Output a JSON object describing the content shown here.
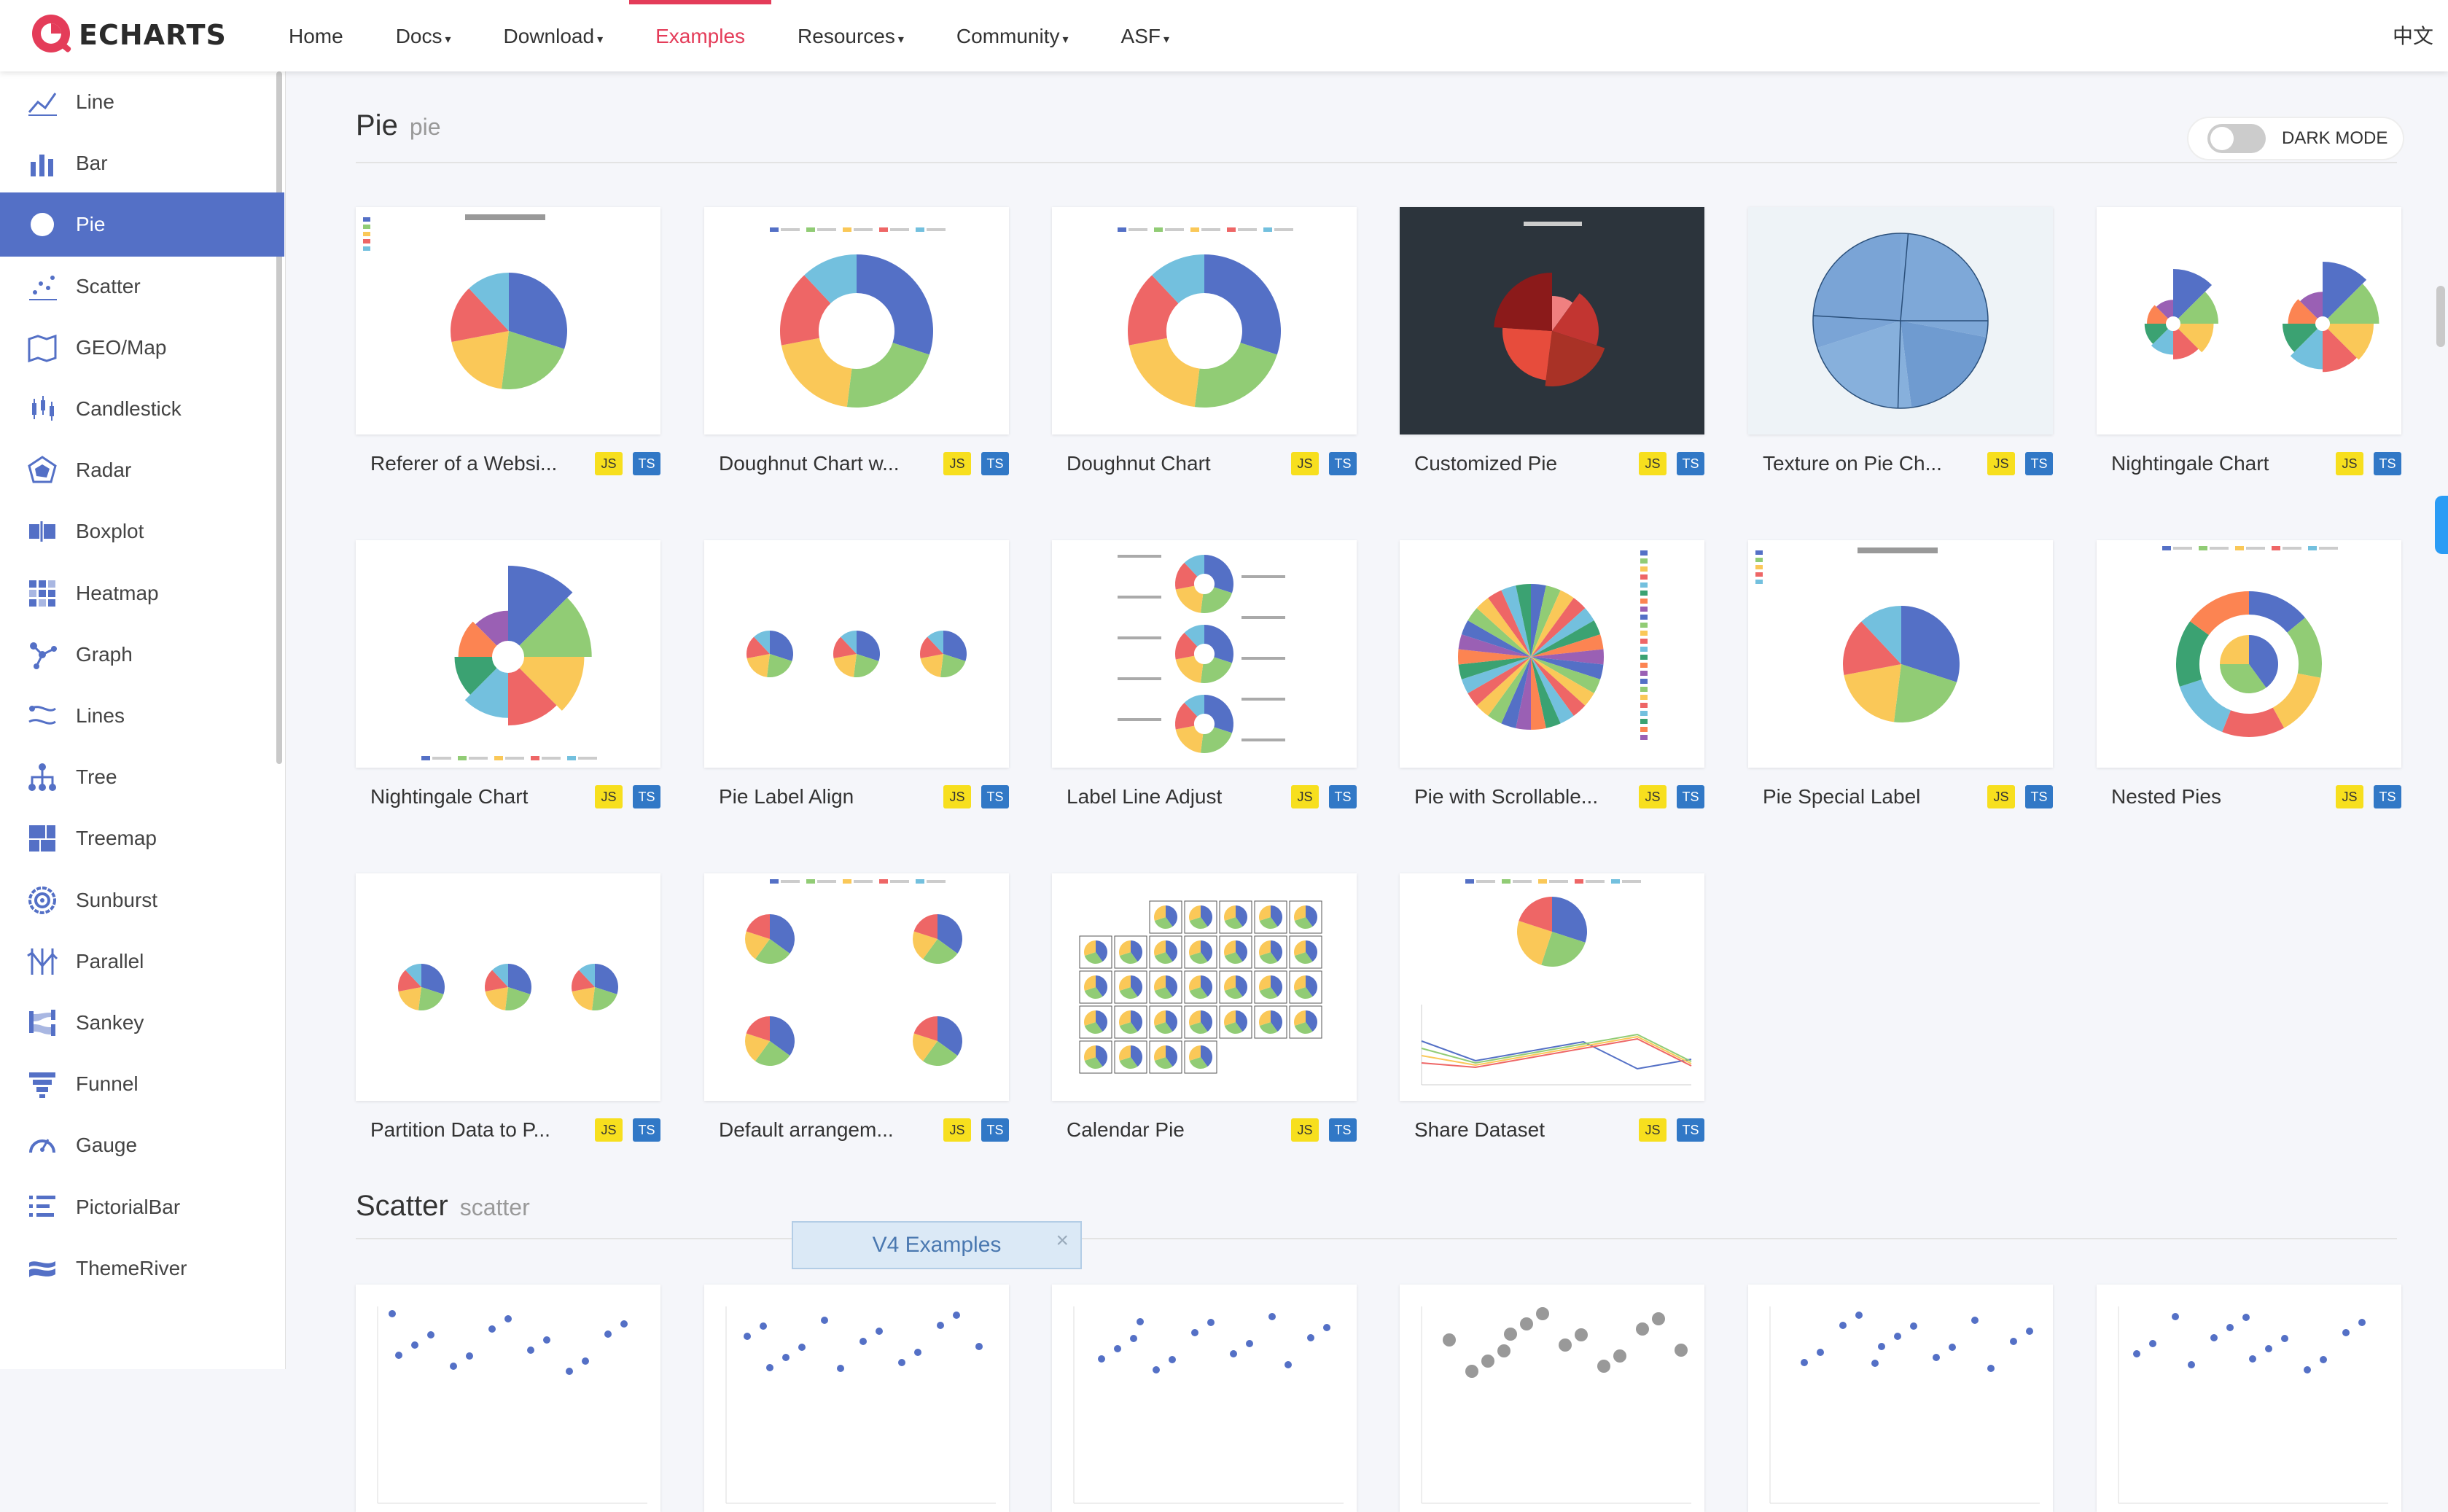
{
  "brand": {
    "name": "ECHARTS",
    "accent": "#e43c59",
    "primary": "#5470c6"
  },
  "nav": {
    "items": [
      {
        "label": "Home",
        "caret": ""
      },
      {
        "label": "Docs",
        "caret": "▾"
      },
      {
        "label": "Download",
        "caret": "▾"
      },
      {
        "label": "Examples",
        "caret": ""
      },
      {
        "label": "Resources",
        "caret": "▾"
      },
      {
        "label": "Community",
        "caret": "▾"
      },
      {
        "label": "ASF",
        "caret": "▾"
      }
    ],
    "active": "Examples",
    "lang": "中文"
  },
  "sidebar": {
    "items": [
      {
        "label": "Line",
        "icon": "line-chart-icon"
      },
      {
        "label": "Bar",
        "icon": "bar-chart-icon"
      },
      {
        "label": "Pie",
        "icon": "pie-chart-icon"
      },
      {
        "label": "Scatter",
        "icon": "scatter-chart-icon"
      },
      {
        "label": "GEO/Map",
        "icon": "map-icon"
      },
      {
        "label": "Candlestick",
        "icon": "candlestick-icon"
      },
      {
        "label": "Radar",
        "icon": "radar-icon"
      },
      {
        "label": "Boxplot",
        "icon": "boxplot-icon"
      },
      {
        "label": "Heatmap",
        "icon": "heatmap-icon"
      },
      {
        "label": "Graph",
        "icon": "graph-icon"
      },
      {
        "label": "Lines",
        "icon": "lines-icon"
      },
      {
        "label": "Tree",
        "icon": "tree-icon"
      },
      {
        "label": "Treemap",
        "icon": "treemap-icon"
      },
      {
        "label": "Sunburst",
        "icon": "sunburst-icon"
      },
      {
        "label": "Parallel",
        "icon": "parallel-icon"
      },
      {
        "label": "Sankey",
        "icon": "sankey-icon"
      },
      {
        "label": "Funnel",
        "icon": "funnel-icon"
      },
      {
        "label": "Gauge",
        "icon": "gauge-icon"
      },
      {
        "label": "PictorialBar",
        "icon": "pictorialbar-icon"
      },
      {
        "label": "ThemeRiver",
        "icon": "themeriver-icon"
      }
    ],
    "active": "Pie"
  },
  "toggle": {
    "label": "DARK MODE",
    "on": false
  },
  "sections": [
    {
      "title": "Pie",
      "subtitle": "pie",
      "cards": [
        {
          "title": "Referer of a Websi...",
          "thumb": "pie"
        },
        {
          "title": "Doughnut Chart w...",
          "thumb": "doughnut"
        },
        {
          "title": "Doughnut Chart",
          "thumb": "doughnut"
        },
        {
          "title": "Customized Pie",
          "thumb": "dark-pie"
        },
        {
          "title": "Texture on Pie Ch...",
          "thumb": "texture-pie"
        },
        {
          "title": "Nightingale Chart",
          "thumb": "double-rose"
        },
        {
          "title": "Nightingale Chart",
          "thumb": "rose"
        },
        {
          "title": "Pie Label Align",
          "thumb": "triple-pie"
        },
        {
          "title": "Label Line Adjust",
          "thumb": "stacked-pies"
        },
        {
          "title": "Pie with Scrollable...",
          "thumb": "many-slices"
        },
        {
          "title": "Pie Special Label",
          "thumb": "pie"
        },
        {
          "title": "Nested Pies",
          "thumb": "nested"
        },
        {
          "title": "Partition Data to P...",
          "thumb": "triple-pie"
        },
        {
          "title": "Default arrangem...",
          "thumb": "quad-pie"
        },
        {
          "title": "Calendar Pie",
          "thumb": "calendar"
        },
        {
          "title": "Share Dataset",
          "thumb": "dataset"
        }
      ]
    },
    {
      "title": "Scatter",
      "subtitle": "scatter",
      "cards": []
    }
  ],
  "badges": {
    "js": "JS",
    "ts": "TS"
  },
  "banner": {
    "label": "V4 Examples",
    "close": "×"
  },
  "palette": [
    "#5470c6",
    "#91cc75",
    "#fac858",
    "#ee6666",
    "#73c0de",
    "#3ba272",
    "#fc8452",
    "#9a60b4"
  ]
}
